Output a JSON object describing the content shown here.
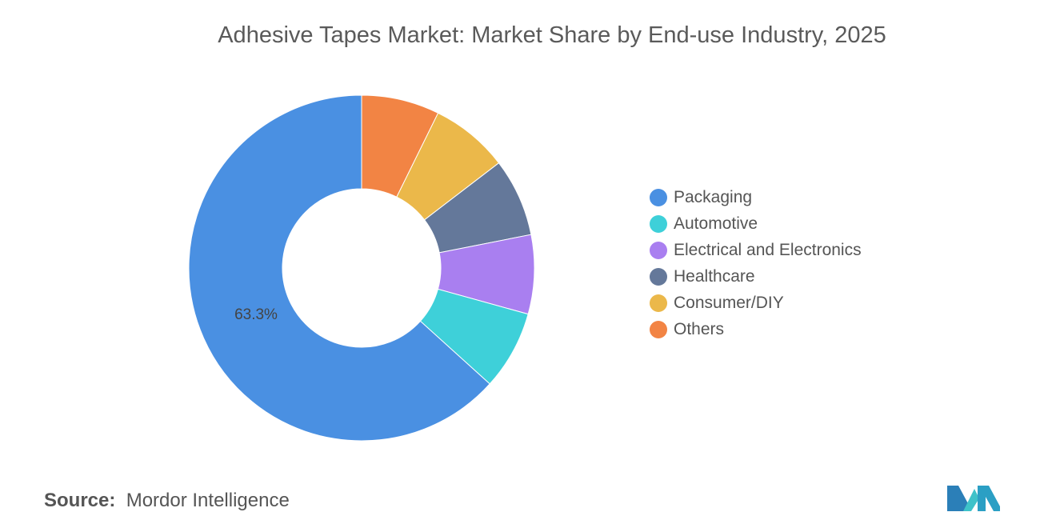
{
  "title": "Adhesive Tapes Market: Market Share by End-use Industry, 2025",
  "source_label": "Source:",
  "source_value": "Mordor Intelligence",
  "logo_text": "Mordor Intelligence",
  "chart_data": {
    "type": "pie",
    "donut": true,
    "title": "Adhesive Tapes Market: Market Share by End-use Industry, 2025",
    "legend_position": "right",
    "categories": [
      "Packaging",
      "Automotive",
      "Electrical and Electronics",
      "Healthcare",
      "Consumer/DIY",
      "Others"
    ],
    "values": [
      63.3,
      7.4,
      7.4,
      7.3,
      7.3,
      7.3
    ],
    "colors": [
      "#4a90e2",
      "#3ed0d9",
      "#a97ff0",
      "#64789a",
      "#ebb84a",
      "#f28444"
    ],
    "data_labels": [
      {
        "category": "Packaging",
        "text": "63.3%"
      }
    ]
  }
}
